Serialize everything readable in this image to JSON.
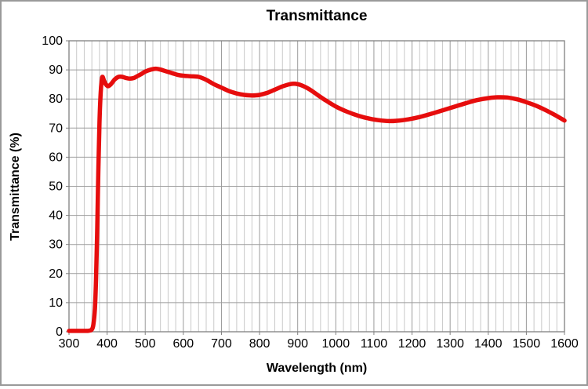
{
  "chart_data": {
    "type": "line",
    "title": "Transmittance",
    "xlabel": "Wavelength (nm)",
    "ylabel": "Transmittance (%)",
    "xlim": [
      300,
      1600
    ],
    "ylim": [
      0,
      100
    ],
    "x_ticks": [
      300,
      400,
      500,
      600,
      700,
      800,
      900,
      1000,
      1100,
      1200,
      1300,
      1400,
      1500,
      1600
    ],
    "y_ticks": [
      0,
      10,
      20,
      30,
      40,
      50,
      60,
      70,
      80,
      90,
      100
    ],
    "x_minor_step": 20,
    "grid": {
      "x_major": true,
      "x_minor": true,
      "y_major": true,
      "y_minor": false
    },
    "legend": "none",
    "series": [
      {
        "name": "Transmittance",
        "color": "#e60d0d",
        "points": [
          [
            300,
            0.3
          ],
          [
            310,
            0.3
          ],
          [
            320,
            0.3
          ],
          [
            330,
            0.3
          ],
          [
            340,
            0.3
          ],
          [
            348,
            0.3
          ],
          [
            354,
            0.4
          ],
          [
            360,
            0.8
          ],
          [
            364,
            2.5
          ],
          [
            368,
            8
          ],
          [
            371,
            18
          ],
          [
            374,
            35
          ],
          [
            377,
            55
          ],
          [
            380,
            72
          ],
          [
            383,
            82
          ],
          [
            386,
            86.5
          ],
          [
            388,
            87.6
          ],
          [
            392,
            86.3
          ],
          [
            397,
            85.0
          ],
          [
            403,
            84.4
          ],
          [
            410,
            85.1
          ],
          [
            420,
            86.7
          ],
          [
            430,
            87.6
          ],
          [
            440,
            87.6
          ],
          [
            450,
            87.2
          ],
          [
            460,
            87.0
          ],
          [
            470,
            87.2
          ],
          [
            480,
            87.9
          ],
          [
            490,
            88.6
          ],
          [
            500,
            89.4
          ],
          [
            515,
            90.1
          ],
          [
            528,
            90.4
          ],
          [
            540,
            90.1
          ],
          [
            555,
            89.5
          ],
          [
            570,
            88.9
          ],
          [
            585,
            88.3
          ],
          [
            600,
            88.0
          ],
          [
            620,
            87.8
          ],
          [
            640,
            87.6
          ],
          [
            660,
            86.6
          ],
          [
            680,
            85.1
          ],
          [
            700,
            83.9
          ],
          [
            720,
            82.7
          ],
          [
            740,
            81.9
          ],
          [
            760,
            81.4
          ],
          [
            780,
            81.2
          ],
          [
            800,
            81.4
          ],
          [
            820,
            82.1
          ],
          [
            840,
            83.2
          ],
          [
            860,
            84.3
          ],
          [
            880,
            85.1
          ],
          [
            895,
            85.2
          ],
          [
            910,
            84.7
          ],
          [
            930,
            83.4
          ],
          [
            950,
            81.6
          ],
          [
            970,
            79.8
          ],
          [
            1000,
            77.4
          ],
          [
            1030,
            75.6
          ],
          [
            1060,
            74.2
          ],
          [
            1090,
            73.2
          ],
          [
            1120,
            72.6
          ],
          [
            1140,
            72.4
          ],
          [
            1160,
            72.5
          ],
          [
            1190,
            73.0
          ],
          [
            1220,
            73.8
          ],
          [
            1250,
            74.9
          ],
          [
            1280,
            76.1
          ],
          [
            1310,
            77.3
          ],
          [
            1340,
            78.5
          ],
          [
            1370,
            79.6
          ],
          [
            1400,
            80.3
          ],
          [
            1425,
            80.6
          ],
          [
            1450,
            80.5
          ],
          [
            1475,
            79.9
          ],
          [
            1500,
            78.9
          ],
          [
            1525,
            77.7
          ],
          [
            1550,
            76.2
          ],
          [
            1575,
            74.5
          ],
          [
            1600,
            72.6
          ]
        ]
      }
    ],
    "colors": {
      "background": "#ffffff",
      "plot_border": "#808080",
      "grid_major": "#9b9b9b",
      "grid_minor": "#c9c9c9",
      "tick": "#7f7f7f",
      "curve": "#e60d0d",
      "text": "#000000",
      "frame": "#9a9a9a"
    },
    "line_width": 5.5
  }
}
